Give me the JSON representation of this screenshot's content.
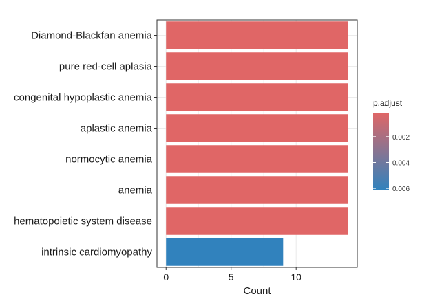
{
  "chart_data": {
    "type": "bar",
    "orientation": "horizontal",
    "categories": [
      "Diamond-Blackfan anemia",
      "pure red-cell aplasia",
      "congenital hypoplastic anemia",
      "aplastic anemia",
      "normocytic anemia",
      "anemia",
      "hematopoietic system disease",
      "intrinsic cardiomyopathy"
    ],
    "values": [
      14,
      14,
      14,
      14,
      14,
      14,
      14,
      9
    ],
    "p_adjust": [
      0.00015,
      0.00015,
      0.00015,
      0.00015,
      0.00015,
      0.00015,
      0.00015,
      0.0061
    ],
    "xlabel": "Count",
    "ylabel": "",
    "xlim": [
      -0.7,
      14.7
    ],
    "xticks": [
      "0",
      "5",
      "10"
    ],
    "grid": true,
    "legend": {
      "title": "p.adjust",
      "placement": "right",
      "ticks": [
        "0.002",
        "0.004",
        "0.006"
      ],
      "tick_values": [
        0.002,
        0.004,
        0.006
      ],
      "range": [
        0.00015,
        0.0061
      ],
      "color_low": "#e06666",
      "color_high": "#3182bd"
    },
    "colors": {
      "red": "#e06666",
      "blue": "#3182bd",
      "grid": "#ebebeb",
      "panel_border": "#333333"
    }
  }
}
